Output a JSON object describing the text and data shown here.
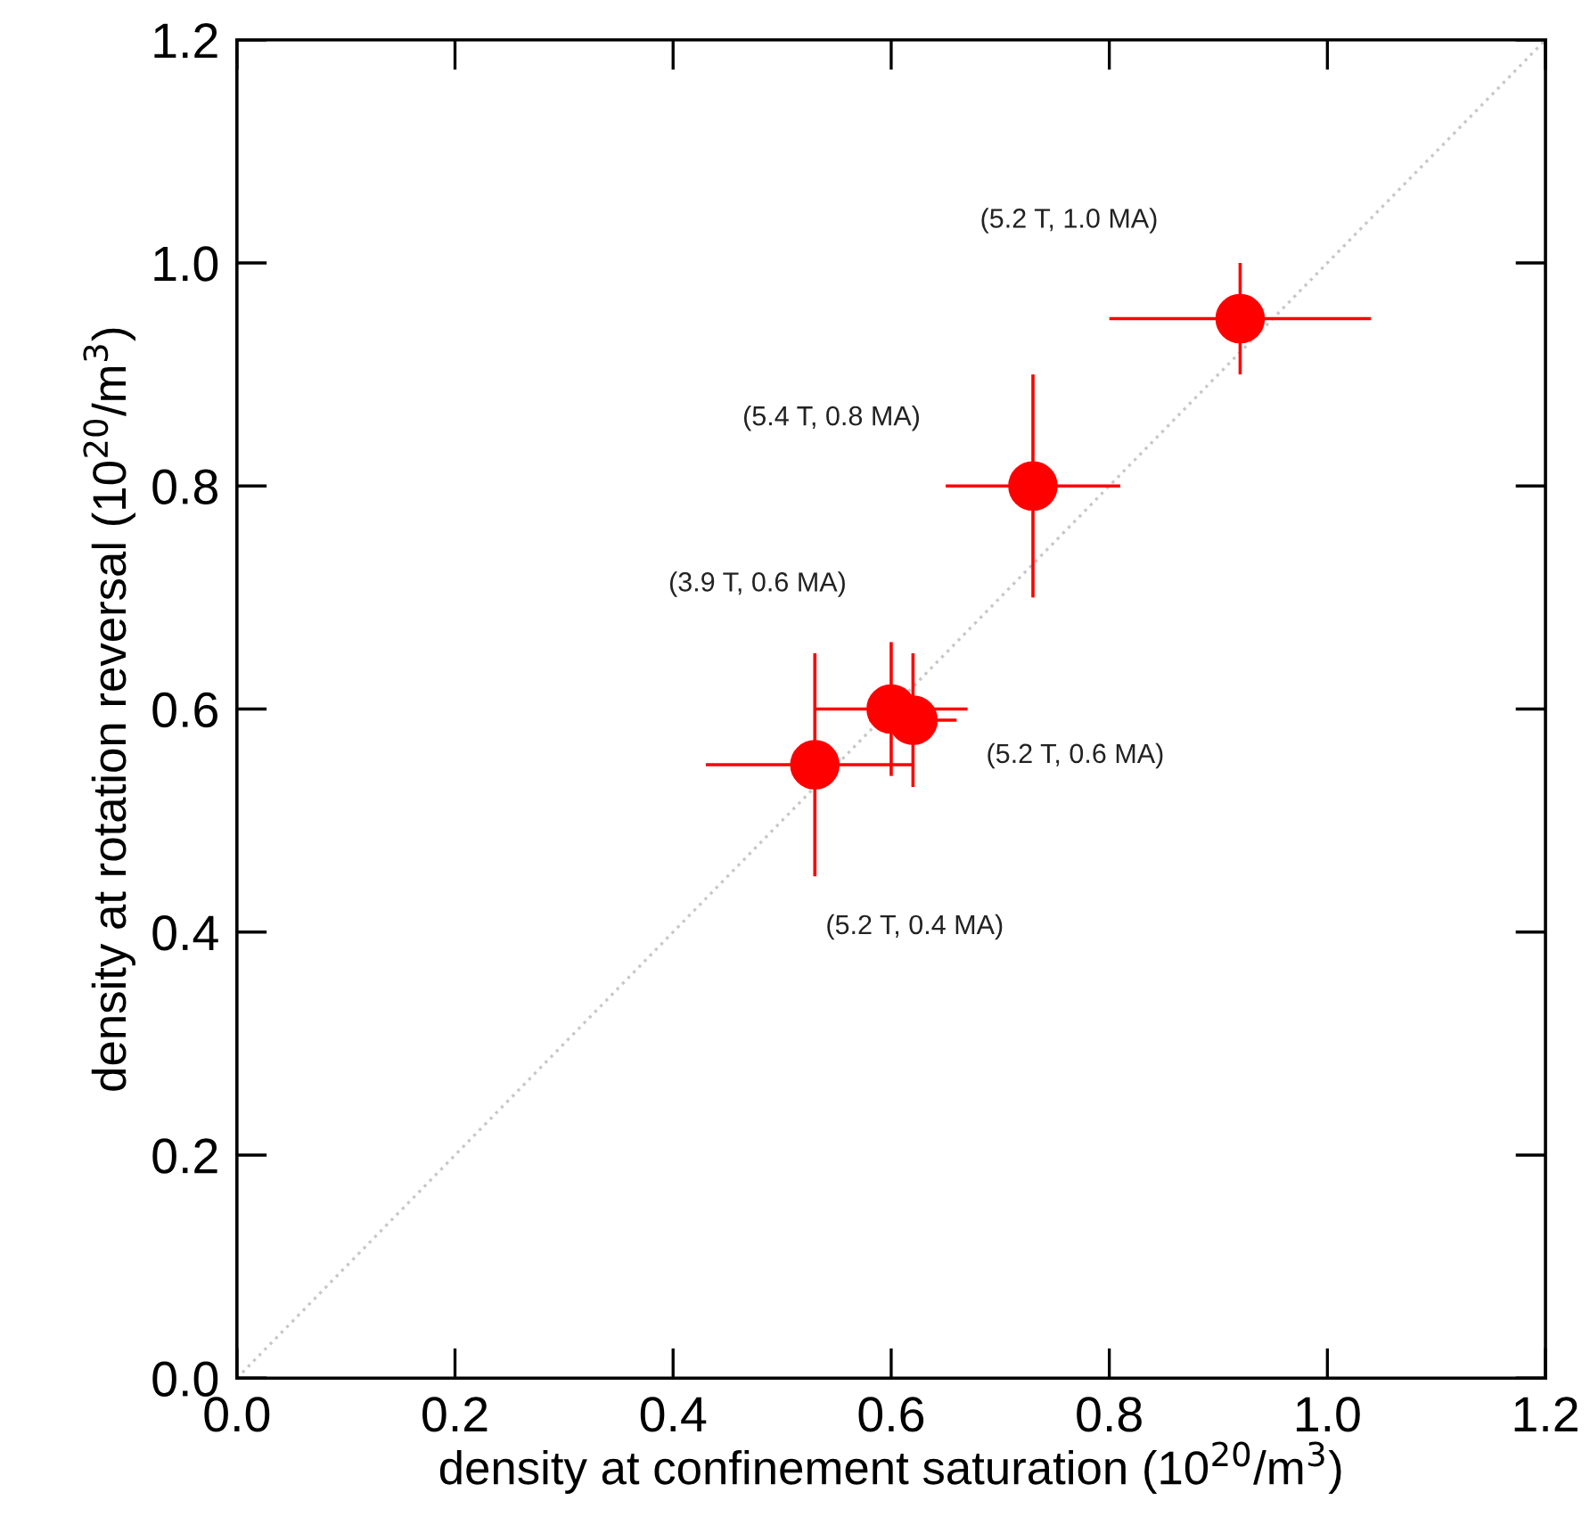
{
  "chart_data": {
    "type": "scatter",
    "xlabel": "density at confinement saturation (10$^{20}$/m$^{3}$)",
    "ylabel": "density at rotation reversal (10$^{20}$/m$^{3}$)",
    "xlim": [
      0.0,
      1.2
    ],
    "ylim": [
      0.0,
      1.2
    ],
    "xticks": [
      {
        "value": 0.0,
        "label": "0.0"
      },
      0.2,
      0.4,
      0.6,
      0.8,
      {
        "value": 1.0,
        "label": "1.0"
      },
      1.2
    ],
    "yticks": [
      {
        "value": 0.0,
        "label": "0.0"
      },
      0.2,
      0.4,
      0.6,
      0.8,
      {
        "value": 1.0,
        "label": "1.0"
      },
      1.2
    ],
    "grid": false,
    "marker": "circle",
    "series": [
      {
        "type": "line",
        "color": "#c8c8c8",
        "line_style": "dotted",
        "marker": "none",
        "x": [
          0.0,
          1.2
        ],
        "values": [
          0.0,
          1.2
        ]
      },
      {
        "color": "#ff0000",
        "x": [
          0.92,
          0.73,
          0.6,
          0.62,
          0.53
        ],
        "values": [
          0.95,
          0.8,
          0.6,
          0.59,
          0.55
        ],
        "xerrors": [
          [
            0.8,
            1.04
          ],
          [
            0.65,
            0.81
          ],
          [
            0.53,
            0.67
          ],
          [
            0.58,
            0.66
          ],
          [
            0.43,
            0.62
          ]
        ],
        "errors": [
          [
            0.9,
            1.0
          ],
          [
            0.7,
            0.9
          ],
          [
            0.54,
            0.66
          ],
          [
            0.53,
            0.65
          ],
          [
            0.45,
            0.65
          ]
        ]
      }
    ],
    "annotations": [
      "(5.2 T, 1.0 MA)",
      "(5.4 T, 0.8 MA)",
      "(3.9 T, 0.6 MA)",
      "(5.2 T, 0.6 MA)",
      "(5.2 T, 0.4 MA)"
    ]
  }
}
